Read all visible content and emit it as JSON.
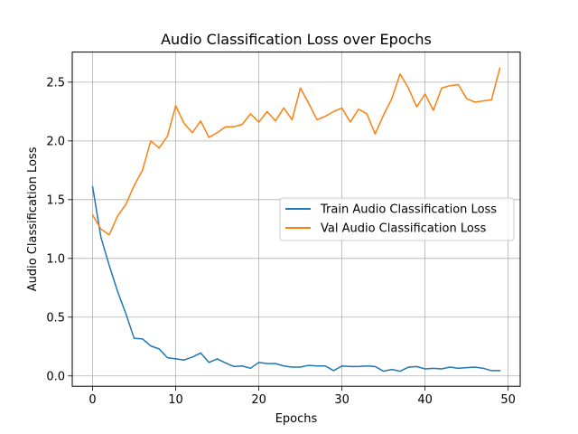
{
  "chart_data": {
    "type": "line",
    "title": "Audio Classification Loss over Epochs",
    "xlabel": "Epochs",
    "ylabel": "Audio Classification Loss",
    "xlim": [
      -2.45,
      51.45
    ],
    "ylim": [
      -0.088,
      2.756
    ],
    "xticks": [
      0,
      10,
      20,
      30,
      40,
      50
    ],
    "yticks": [
      0.0,
      0.5,
      1.0,
      1.5,
      2.0,
      2.5
    ],
    "ytick_labels": [
      "0.0",
      "0.5",
      "1.0",
      "1.5",
      "2.0",
      "2.5"
    ],
    "grid": true,
    "legend_position": "center-right",
    "x": [
      0,
      1,
      2,
      3,
      4,
      5,
      6,
      7,
      8,
      9,
      10,
      11,
      12,
      13,
      14,
      15,
      16,
      17,
      18,
      19,
      20,
      21,
      22,
      23,
      24,
      25,
      26,
      27,
      28,
      29,
      30,
      31,
      32,
      33,
      34,
      35,
      36,
      37,
      38,
      39,
      40,
      41,
      42,
      43,
      44,
      45,
      46,
      47,
      48,
      49
    ],
    "series": [
      {
        "name": "Train Audio Classification Loss",
        "color": "#1f77b4",
        "values": [
          1.61,
          1.18,
          0.94,
          0.72,
          0.53,
          0.32,
          0.315,
          0.255,
          0.23,
          0.155,
          0.145,
          0.135,
          0.16,
          0.195,
          0.115,
          0.145,
          0.11,
          0.08,
          0.085,
          0.065,
          0.115,
          0.105,
          0.105,
          0.085,
          0.075,
          0.075,
          0.09,
          0.085,
          0.085,
          0.045,
          0.085,
          0.08,
          0.08,
          0.085,
          0.08,
          0.04,
          0.055,
          0.04,
          0.075,
          0.08,
          0.06,
          0.065,
          0.06,
          0.075,
          0.065,
          0.07,
          0.075,
          0.065,
          0.045,
          0.045
        ]
      },
      {
        "name": "Val Audio Classification Loss",
        "color": "#ff7f0e",
        "values": [
          1.37,
          1.25,
          1.2,
          1.36,
          1.46,
          1.62,
          1.75,
          2.0,
          1.94,
          2.04,
          2.3,
          2.15,
          2.07,
          2.17,
          2.03,
          2.07,
          2.12,
          2.12,
          2.14,
          2.23,
          2.16,
          2.25,
          2.17,
          2.28,
          2.18,
          2.45,
          2.32,
          2.18,
          2.21,
          2.25,
          2.28,
          2.16,
          2.27,
          2.23,
          2.06,
          2.22,
          2.36,
          2.57,
          2.45,
          2.29,
          2.4,
          2.26,
          2.45,
          2.47,
          2.48,
          2.36,
          2.33,
          2.34,
          2.35,
          2.62
        ]
      }
    ]
  }
}
